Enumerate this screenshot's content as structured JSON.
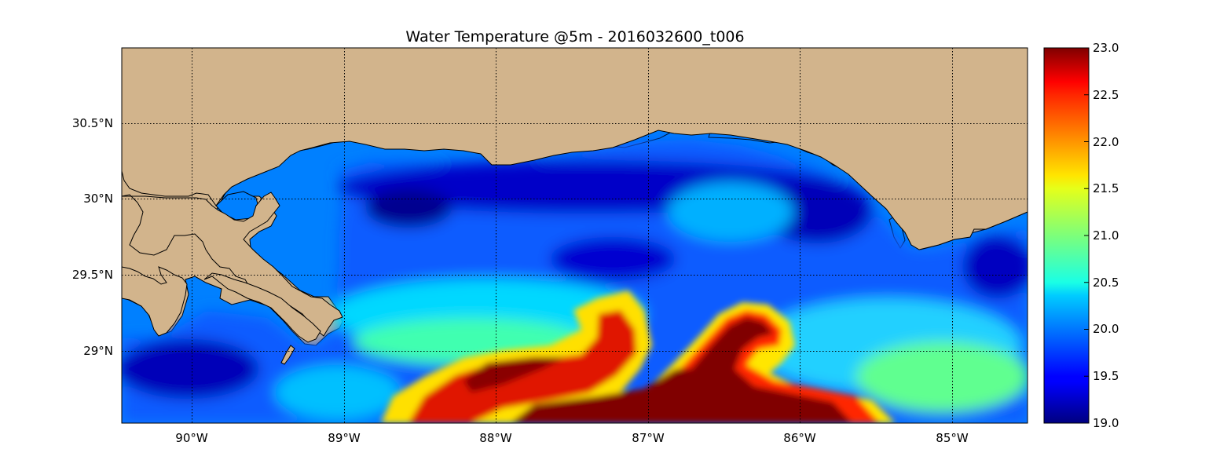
{
  "title": "Water Temperature @5m - 2016032600_t006",
  "map": {
    "lon_range": [
      -90.47,
      -84.5
    ],
    "lat_range": [
      28.53,
      31.0
    ],
    "lon_ticks": [
      {
        "value": -90,
        "label": "90°W"
      },
      {
        "value": -89,
        "label": "89°W"
      },
      {
        "value": -88,
        "label": "88°W"
      },
      {
        "value": -87,
        "label": "87°W"
      },
      {
        "value": -86,
        "label": "86°W"
      },
      {
        "value": -85,
        "label": "85°W"
      }
    ],
    "lat_ticks": [
      {
        "value": 30.5,
        "label": "30.5°N"
      },
      {
        "value": 30.0,
        "label": "30°N"
      },
      {
        "value": 29.5,
        "label": "29.5°N"
      },
      {
        "value": 29.0,
        "label": "29°N"
      }
    ],
    "grid": "dotted",
    "colors": {
      "land": "#d2b48c",
      "masked_water": "#0080ff",
      "lake": "#00ffff",
      "coastline": "#000000"
    }
  },
  "colorbar": {
    "colormap": "jet",
    "vmin": 19.0,
    "vmax": 23.0,
    "ticks": [
      "23.0",
      "22.5",
      "22.0",
      "21.5",
      "21.0",
      "20.5",
      "20.0",
      "19.5",
      "19.0"
    ]
  }
}
